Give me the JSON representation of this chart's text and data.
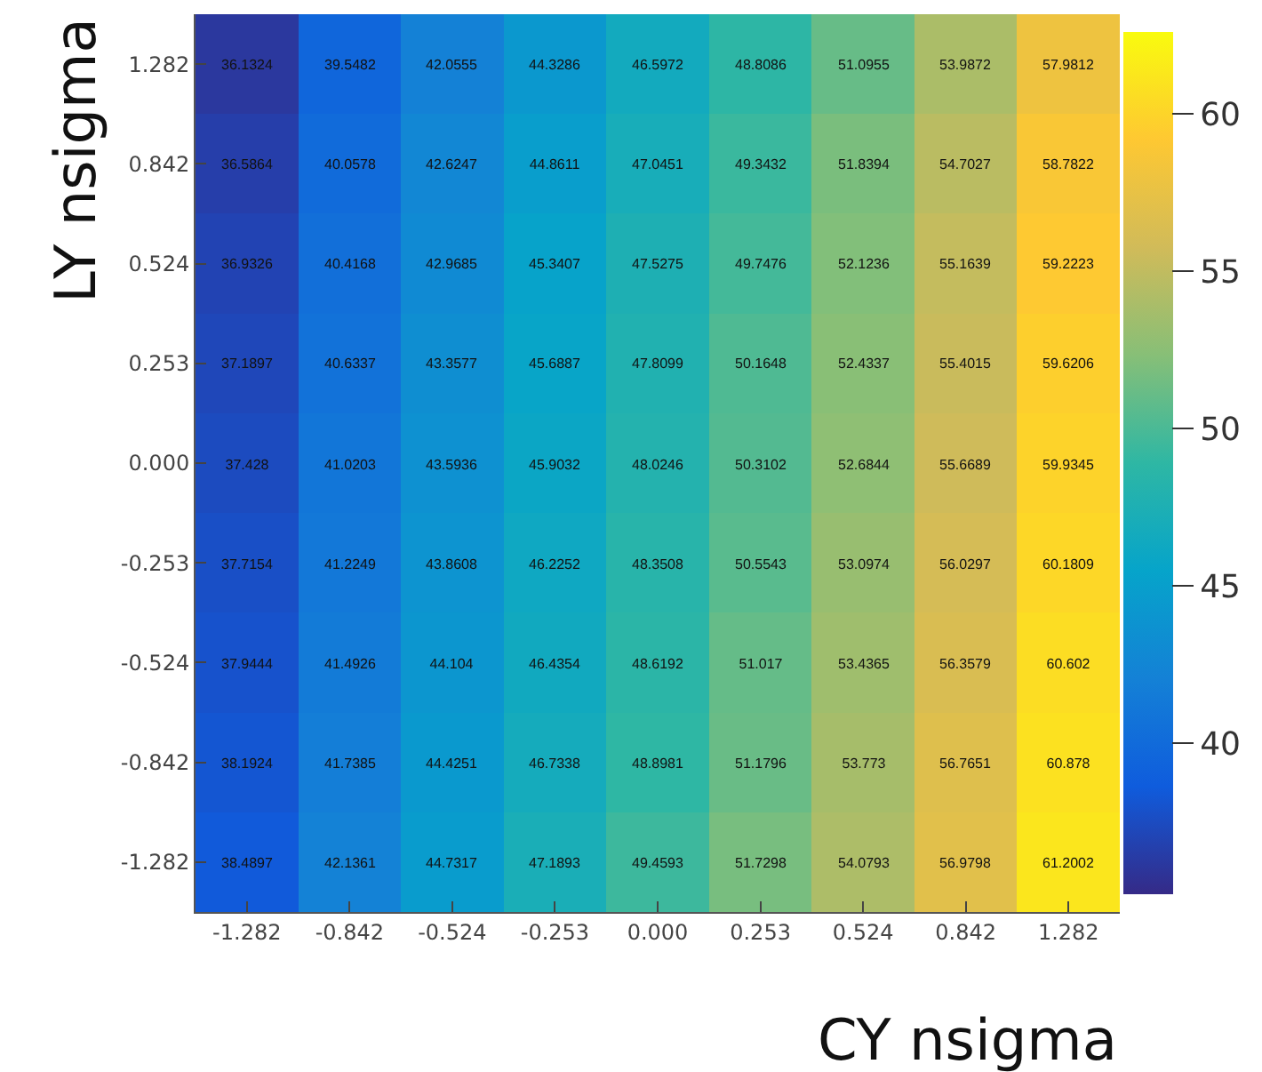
{
  "chart_data": {
    "type": "heatmap",
    "xlabel": "CY nsigma",
    "ylabel": "LY nsigma",
    "categories": [
      "-1.282",
      "-0.842",
      "-0.524",
      "-0.253",
      "0.000",
      "0.253",
      "0.524",
      "0.842",
      "1.282"
    ],
    "y_categories": [
      "1.282",
      "0.842",
      "0.524",
      "0.253",
      "0.000",
      "-0.253",
      "-0.524",
      "-0.842",
      "-1.282"
    ],
    "cells": [
      [
        36.1324,
        39.5482,
        42.0555,
        44.3286,
        46.5972,
        48.8086,
        51.0955,
        53.9872,
        57.9812
      ],
      [
        36.5864,
        40.0578,
        42.6247,
        44.8611,
        47.0451,
        49.3432,
        51.8394,
        54.7027,
        58.7822
      ],
      [
        36.9326,
        40.4168,
        42.9685,
        45.3407,
        47.5275,
        49.7476,
        52.1236,
        55.1639,
        59.2223
      ],
      [
        37.1897,
        40.6337,
        43.3577,
        45.6887,
        47.8099,
        50.1648,
        52.4337,
        55.4015,
        59.6206
      ],
      [
        37.428,
        41.0203,
        43.5936,
        45.9032,
        48.0246,
        50.3102,
        52.6844,
        55.6689,
        59.9345
      ],
      [
        37.7154,
        41.2249,
        43.8608,
        46.2252,
        48.3508,
        50.5543,
        53.0974,
        56.0297,
        60.1809
      ],
      [
        37.9444,
        41.4926,
        44.104,
        46.4354,
        48.6192,
        51.017,
        53.4365,
        56.3579,
        60.602
      ],
      [
        38.1924,
        41.7385,
        44.4251,
        46.7338,
        48.8981,
        51.1796,
        53.773,
        56.7651,
        60.878
      ],
      [
        38.4897,
        42.1361,
        44.7317,
        47.1893,
        49.4593,
        51.7298,
        54.0793,
        56.9798,
        61.2002
      ]
    ],
    "data_labels": true,
    "clim": [
      35.2,
      62.6
    ],
    "cticks": [
      40,
      45,
      50,
      55,
      60
    ]
  }
}
